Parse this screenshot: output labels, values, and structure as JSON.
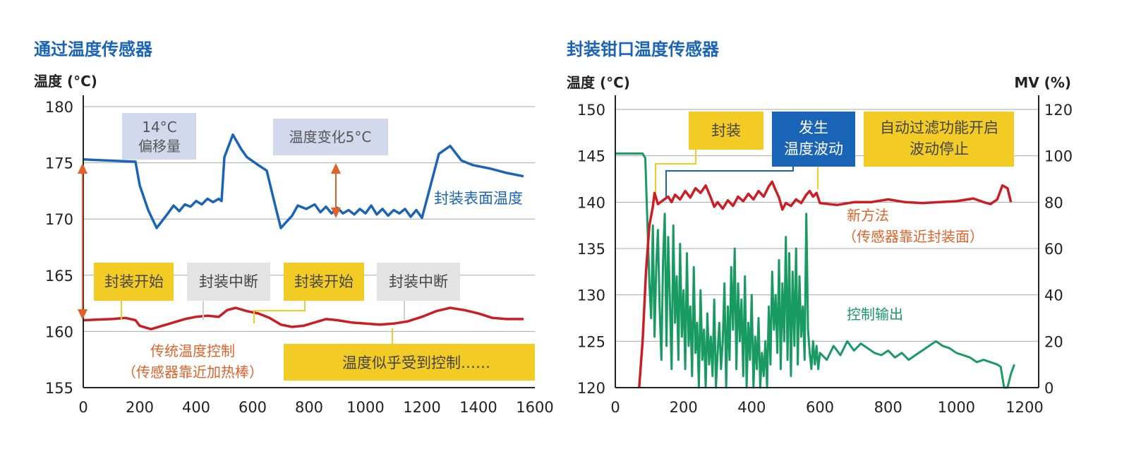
{
  "colors": {
    "title": "#1a64b8",
    "axis": "#222222",
    "grid": "#a8a8a8",
    "blue_line": "#1a64b8",
    "red_line": "#cc1c24",
    "green_line": "#1a9a63",
    "orange_arrow": "#e0622a",
    "orange_text": "#e0622a",
    "green_text": "#1a9a63",
    "yellow_box": "#f2cc24",
    "gray_box": "#e3e3e3",
    "lavender_box": "#d3d9ec",
    "blue_box": "#1a64b8"
  },
  "chart_data": [
    {
      "type": "line",
      "title": "通过温度传感器",
      "ylabel": "温度 (°C)",
      "xlabel": "",
      "xlim": [
        0,
        1600
      ],
      "ylim": [
        155,
        180
      ],
      "xticks": [
        0,
        200,
        400,
        600,
        800,
        1000,
        1200,
        1400,
        1600
      ],
      "yticks": [
        155,
        160,
        165,
        170,
        175,
        180
      ],
      "grid": "horizontal",
      "series": [
        {
          "name": "封装表面温度",
          "x": [
            0,
            185,
            200,
            230,
            260,
            300,
            320,
            340,
            360,
            380,
            400,
            420,
            440,
            460,
            480,
            490,
            500,
            530,
            560,
            580,
            620,
            650,
            680,
            700,
            740,
            760,
            790,
            820,
            840,
            860,
            880,
            900,
            920,
            940,
            960,
            980,
            1000,
            1020,
            1040,
            1060,
            1080,
            1100,
            1120,
            1140,
            1160,
            1180,
            1200,
            1220,
            1260,
            1300,
            1340,
            1380,
            1440,
            1500,
            1560
          ],
          "y": [
            175.3,
            175.1,
            173.0,
            170.8,
            169.2,
            170.5,
            171.2,
            170.7,
            171.3,
            171.1,
            171.6,
            171.3,
            171.8,
            171.5,
            171.8,
            171.6,
            175.5,
            177.5,
            176.2,
            175.5,
            174.8,
            174.3,
            171.2,
            169.2,
            170.3,
            171.2,
            170.9,
            171.3,
            170.6,
            171.1,
            170.5,
            171.0,
            170.5,
            170.8,
            170.4,
            170.9,
            170.5,
            171.2,
            170.4,
            170.9,
            170.3,
            170.8,
            170.5,
            170.9,
            170.2,
            170.8,
            170.1,
            172.0,
            175.8,
            176.5,
            175.2,
            174.8,
            174.5,
            174.1,
            173.8
          ]
        },
        {
          "name": "传统温度控制",
          "x": [
            0,
            100,
            150,
            185,
            200,
            240,
            280,
            320,
            360,
            400,
            440,
            480,
            510,
            540,
            580,
            620,
            660,
            700,
            740,
            780,
            820,
            860,
            900,
            950,
            1000,
            1050,
            1100,
            1150,
            1200,
            1250,
            1300,
            1350,
            1400,
            1450,
            1500,
            1560
          ],
          "y": [
            161.0,
            161.1,
            161.2,
            161.0,
            160.5,
            160.2,
            160.5,
            160.8,
            161.1,
            161.3,
            161.4,
            161.3,
            161.9,
            162.1,
            161.8,
            161.6,
            161.2,
            160.6,
            160.4,
            160.5,
            160.8,
            161.1,
            161.0,
            160.8,
            160.7,
            160.6,
            160.7,
            160.9,
            161.3,
            161.8,
            162.1,
            161.9,
            161.6,
            161.2,
            161.1,
            161.1
          ]
        }
      ],
      "annotations": [
        {
          "text": "14°C\n偏移量",
          "style": "lavender"
        },
        {
          "text": "温度变化5°C",
          "style": "lavender"
        },
        {
          "text": "封装表面温度",
          "style": "blue-text"
        },
        {
          "text": "封装开始",
          "style": "yellow"
        },
        {
          "text": "封装中断",
          "style": "gray"
        },
        {
          "text": "封装开始",
          "style": "yellow"
        },
        {
          "text": "封装中断",
          "style": "gray"
        },
        {
          "text": "传统温度控制\n（传感器靠近加热棒）",
          "style": "orange-text"
        },
        {
          "text": "温度似乎受到控制……",
          "style": "yellow"
        }
      ]
    },
    {
      "type": "line",
      "title": "封装钳口温度传感器",
      "ylabel": "温度 (°C)",
      "y2label": "MV (%)",
      "xlabel": "",
      "xlim": [
        0,
        1250
      ],
      "ylim": [
        120,
        150
      ],
      "y2lim": [
        0,
        120
      ],
      "xticks": [
        0,
        200,
        400,
        600,
        800,
        1000,
        1200
      ],
      "yticks": [
        120,
        125,
        130,
        135,
        140,
        145,
        150
      ],
      "y2ticks": [
        0,
        20,
        40,
        60,
        80,
        100,
        120
      ],
      "grid": "horizontal",
      "series": [
        {
          "name": "新方法",
          "axis": "left",
          "x": [
            70,
            80,
            90,
            100,
            110,
            115,
            125,
            140,
            155,
            165,
            175,
            190,
            205,
            220,
            235,
            250,
            265,
            280,
            290,
            300,
            315,
            330,
            345,
            360,
            375,
            390,
            405,
            420,
            435,
            450,
            460,
            470,
            480,
            490,
            500,
            515,
            530,
            545,
            560,
            570,
            580,
            590,
            600,
            650,
            700,
            750,
            800,
            850,
            900,
            950,
            1000,
            1050,
            1080,
            1100,
            1120,
            1135,
            1150,
            1160
          ],
          "y": [
            120.0,
            125.0,
            132.5,
            137.5,
            139.5,
            141.0,
            139.8,
            140.2,
            140.6,
            140.0,
            140.8,
            140.3,
            141.2,
            140.5,
            141.5,
            141.0,
            141.8,
            140.5,
            139.5,
            140.0,
            139.3,
            140.2,
            139.6,
            140.6,
            140.1,
            140.9,
            140.3,
            141.2,
            140.6,
            141.7,
            142.2,
            141.3,
            140.5,
            139.2,
            139.9,
            139.6,
            140.3,
            139.9,
            140.8,
            141.2,
            140.6,
            141.0,
            139.9,
            139.7,
            140.0,
            140.0,
            140.3,
            140.0,
            139.9,
            140.0,
            140.1,
            140.4,
            140.0,
            139.8,
            140.3,
            141.8,
            141.5,
            140.0
          ]
        },
        {
          "name": "控制输出",
          "axis": "right",
          "x": [
            0,
            80,
            88,
            100,
            105,
            110,
            115,
            120,
            125,
            130,
            135,
            140,
            145,
            150,
            155,
            160,
            165,
            170,
            175,
            180,
            185,
            190,
            195,
            200,
            205,
            210,
            215,
            220,
            225,
            230,
            235,
            240,
            245,
            250,
            255,
            260,
            265,
            270,
            275,
            280,
            285,
            290,
            295,
            300,
            305,
            310,
            315,
            320,
            325,
            330,
            335,
            340,
            345,
            350,
            355,
            360,
            365,
            370,
            375,
            380,
            385,
            390,
            395,
            400,
            405,
            410,
            415,
            420,
            425,
            430,
            435,
            440,
            445,
            450,
            455,
            460,
            465,
            470,
            475,
            480,
            485,
            490,
            495,
            500,
            505,
            510,
            515,
            520,
            525,
            530,
            535,
            540,
            545,
            550,
            555,
            560,
            565,
            570,
            575,
            580,
            585,
            590,
            595,
            600,
            620,
            640,
            660,
            680,
            700,
            720,
            740,
            760,
            780,
            800,
            820,
            840,
            860,
            880,
            900,
            920,
            940,
            960,
            980,
            1000,
            1020,
            1040,
            1060,
            1080,
            1100,
            1120,
            1130,
            1140,
            1150,
            1160,
            1170
          ],
          "y": [
            101,
            101,
            99,
            45,
            30,
            70,
            22,
            52,
            68,
            35,
            12,
            55,
            75,
            18,
            65,
            38,
            8,
            70,
            28,
            48,
            12,
            62,
            22,
            42,
            8,
            58,
            18,
            35,
            5,
            52,
            15,
            28,
            0,
            42,
            12,
            25,
            0,
            32,
            10,
            22,
            5,
            38,
            0,
            15,
            28,
            8,
            20,
            45,
            0,
            35,
            12,
            52,
            25,
            60,
            8,
            45,
            20,
            38,
            5,
            48,
            0,
            28,
            12,
            40,
            0,
            22,
            8,
            30,
            0,
            15,
            5,
            20,
            0,
            35,
            10,
            50,
            25,
            40,
            15,
            55,
            8,
            45,
            20,
            65,
            12,
            58,
            5,
            50,
            18,
            60,
            10,
            48,
            22,
            35,
            12,
            75,
            25,
            15,
            8,
            20,
            10,
            18,
            8,
            15,
            12,
            18,
            14,
            20,
            16,
            19,
            17,
            15,
            14,
            16,
            13,
            15,
            12,
            14,
            16,
            18,
            20,
            18,
            17,
            15,
            14,
            13,
            11,
            12,
            11,
            10,
            9,
            0,
            0,
            6,
            10
          ]
        }
      ],
      "annotations": [
        {
          "text": "封装",
          "style": "yellow"
        },
        {
          "text": "发生\n温度波动",
          "style": "blue"
        },
        {
          "text": "自动过滤功能开启\n波动停止",
          "style": "yellow"
        },
        {
          "text": "新方法\n（传感器靠近封装面）",
          "style": "orange-text"
        },
        {
          "text": "控制输出",
          "style": "green-text"
        }
      ]
    }
  ],
  "left": {
    "title": "通过温度传感器",
    "ylabel": "温度 (°C)",
    "offset_label_1": "14°C",
    "offset_label_2": "偏移量",
    "change_label": "温度变化5°C",
    "surface_label": "封装表面温度",
    "seal_start_1": "封装开始",
    "seal_stop_1": "封装中断",
    "seal_start_2": "封装开始",
    "seal_stop_2": "封装中断",
    "conventional_1": "传统温度控制",
    "conventional_2": "（传感器靠近加热棒）",
    "seems_controlled": "温度似乎受到控制……"
  },
  "right": {
    "title": "封装钳口温度传感器",
    "ylabel": "温度 (°C)",
    "y2label": "MV (%)",
    "seal_label": "封装",
    "fluct_1": "发生",
    "fluct_2": "温度波动",
    "filter_1": "自动过滤功能开启",
    "filter_2": "波动停止",
    "new_method_1": "新方法",
    "new_method_2": "（传感器靠近封装面）",
    "control_output": "控制输出"
  }
}
